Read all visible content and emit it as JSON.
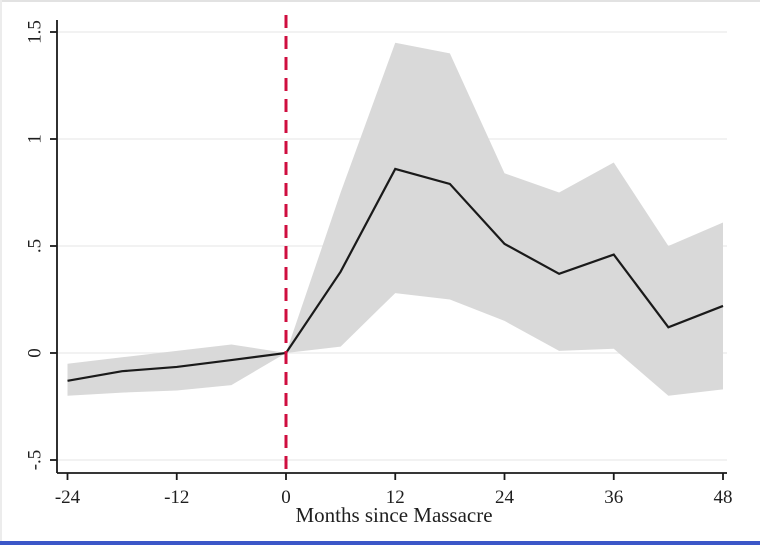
{
  "chart_data": {
    "type": "line",
    "title": "",
    "xlabel": "Months since Massacre",
    "ylabel": "",
    "x": [
      -24,
      -18,
      -12,
      -6,
      0,
      6,
      12,
      18,
      24,
      30,
      36,
      42,
      48
    ],
    "series": [
      {
        "name": "point-estimate",
        "values": [
          -0.13,
          -0.085,
          -0.065,
          -0.033,
          0,
          0.38,
          0.86,
          0.79,
          0.51,
          0.37,
          0.46,
          0.12,
          0.22
        ]
      },
      {
        "name": "ci-upper",
        "values": [
          -0.05,
          -0.02,
          0.01,
          0.04,
          0,
          0.75,
          1.45,
          1.4,
          0.84,
          0.75,
          0.89,
          0.5,
          0.61
        ]
      },
      {
        "name": "ci-lower",
        "values": [
          -0.2,
          -0.185,
          -0.175,
          -0.15,
          0,
          0.03,
          0.28,
          0.25,
          0.15,
          0.01,
          0.02,
          -0.2,
          -0.17
        ]
      }
    ],
    "event_line": {
      "x": 0,
      "style": "dashed"
    },
    "x_ticks": [
      -24,
      -12,
      0,
      12,
      24,
      36,
      48
    ],
    "x_tick_labels": [
      "-24",
      "-12",
      "0",
      "12",
      "24",
      "36",
      "48"
    ],
    "y_ticks": [
      -0.5,
      0,
      0.5,
      1,
      1.5
    ],
    "y_tick_labels": [
      "-.5",
      "0",
      ".5",
      "1",
      "1.5"
    ],
    "xlim": [
      -25,
      48.5
    ],
    "ylim": [
      -0.55,
      1.55
    ],
    "grid": "horizontal",
    "legend": "none",
    "colors": {
      "band": "#d9d9d9",
      "line": "#1a1a1a",
      "event_line": "#cf0e3f",
      "grid": "#ededed",
      "axis": "#1a1a1a",
      "text": "#1f1f1f",
      "page_bottom_strip": "#3b57c8"
    }
  }
}
